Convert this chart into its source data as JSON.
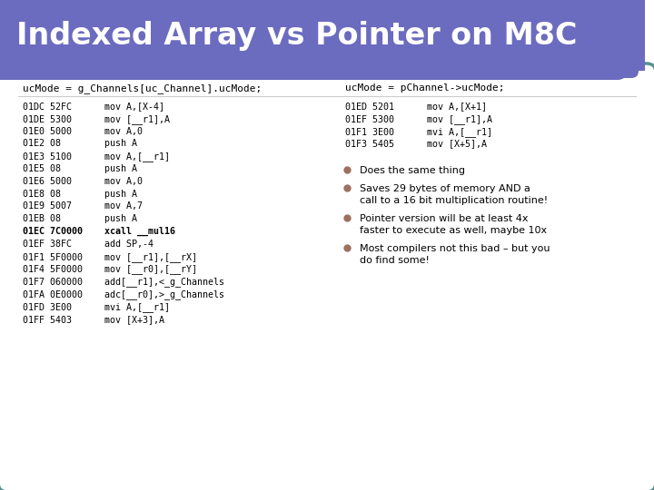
{
  "title": "Indexed Array vs Pointer on M8C",
  "title_bg_color": "#6b6bbf",
  "title_text_color": "#ffffff",
  "body_border_color": "#5a9090",
  "left_header": "ucMode = g_Channels[uc_Channel].ucMode;",
  "right_header": "ucMode = pChannel->ucMode;",
  "code_color": "#000000",
  "xcall_bold": true,
  "left_code_col1": [
    "01DC",
    "01DE",
    "01E0",
    "01E2",
    "01E3",
    "01E5",
    "01E6",
    "01E8",
    "01E9",
    "01EB",
    "01EC",
    "01EF",
    "01F1",
    "01F4",
    "01F7",
    "01FA",
    "01FD",
    "01FF"
  ],
  "left_code_col2": [
    "52FC",
    "5300",
    "5000",
    "08",
    "5100",
    "08",
    "5000",
    "08",
    "5007",
    "08",
    "7C0000",
    "38FC",
    "5F0000",
    "5F0000",
    "060000",
    "0E0000",
    "3E00",
    "5403"
  ],
  "left_code_col3": [
    "mov A,[X-4]",
    "mov [__r1],A",
    "mov A,0",
    "push A",
    "mov A,[__r1]",
    "push A",
    "mov A,0",
    "push A",
    "mov A,7",
    "push A",
    "xcall __mul16",
    "add SP,-4",
    "mov [__r1],[__rX]",
    "mov [__r0],[__rY]",
    "add[__r1],<_g_Channels",
    "adc[__r0],>_g_Channels",
    "mvi A,[__r1]",
    "mov [X+3],A"
  ],
  "right_code_col1": [
    "01ED",
    "01EF",
    "01F1",
    "01F3"
  ],
  "right_code_col2": [
    "5201",
    "5300",
    "3E00",
    "5405"
  ],
  "right_code_col3": [
    "mov A,[X+1]",
    "mov [__r1],A",
    "mvi A,[__r1]",
    "mov [X+5],A"
  ],
  "bullet_color": "#9e7060",
  "bullet_items": [
    [
      "Does the same thing"
    ],
    [
      "Saves 29 bytes of memory AND a",
      "call to a 16 bit multiplication routine!"
    ],
    [
      "Pointer version will be at least 4x",
      "faster to execute as well, maybe 10x"
    ],
    [
      "Most compilers not this bad – but you",
      "do find some!"
    ]
  ]
}
